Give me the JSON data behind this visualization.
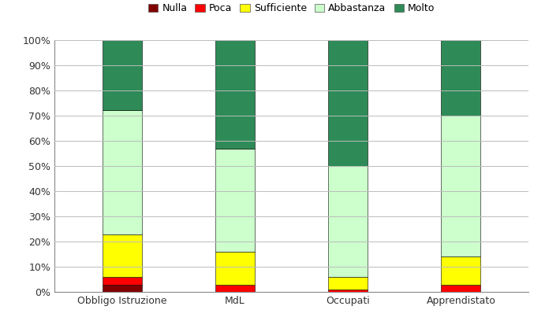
{
  "categories": [
    "Obbligo Istruzione",
    "MdL",
    "Occupati",
    "Apprendistato"
  ],
  "series": {
    "Nulla": [
      3,
      0,
      0,
      0
    ],
    "Poca": [
      3,
      3,
      1,
      3
    ],
    "Sufficiente": [
      17,
      13,
      5,
      11
    ],
    "Abbastanza": [
      49,
      41,
      44,
      56
    ],
    "Molto": [
      28,
      43,
      50,
      30
    ]
  },
  "colors": {
    "Nulla": "#800000",
    "Poca": "#FF0000",
    "Sufficiente": "#FFFF00",
    "Abbastanza": "#CCFFCC",
    "Molto": "#2E8B57"
  },
  "ylim": [
    0,
    100
  ],
  "yticks": [
    0,
    10,
    20,
    30,
    40,
    50,
    60,
    70,
    80,
    90,
    100
  ],
  "yticklabels": [
    "0%",
    "10%",
    "20%",
    "30%",
    "40%",
    "50%",
    "60%",
    "70%",
    "80%",
    "90%",
    "100%"
  ],
  "bar_width": 0.35,
  "background_color": "#FFFFFF",
  "grid_color": "#BBBBBB",
  "legend_order": [
    "Nulla",
    "Poca",
    "Sufficiente",
    "Abbastanza",
    "Molto"
  ],
  "figsize": [
    6.91,
    4.22
  ],
  "dpi": 100
}
